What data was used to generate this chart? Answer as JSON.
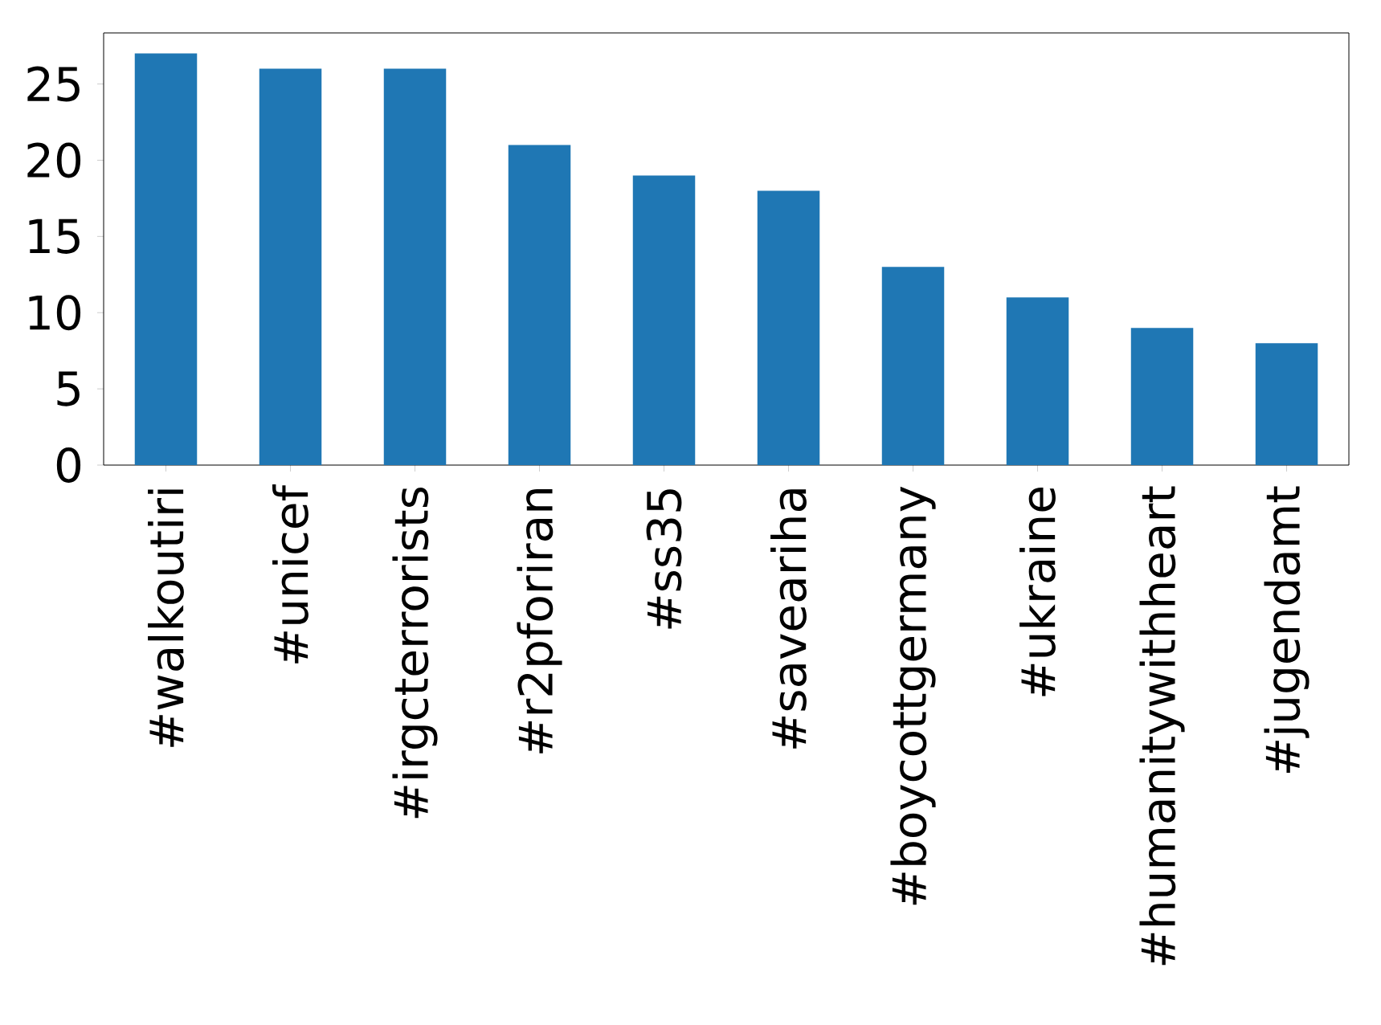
{
  "chart_data": {
    "type": "bar",
    "categories": [
      "#walkoutiri",
      "#unicef",
      "#irgcterrorists",
      "#r2pforiran",
      "#ss35",
      "#saveariha",
      "#boycottgermany",
      "#ukraine",
      "#humanitywithheart",
      "#jugendamt"
    ],
    "values": [
      27,
      26,
      26,
      21,
      19,
      18,
      13,
      11,
      9,
      8
    ],
    "color": "#1f77b4",
    "ylim": [
      0,
      28.35
    ],
    "yticks": [
      0,
      5,
      10,
      15,
      20,
      25
    ],
    "grid": false
  }
}
